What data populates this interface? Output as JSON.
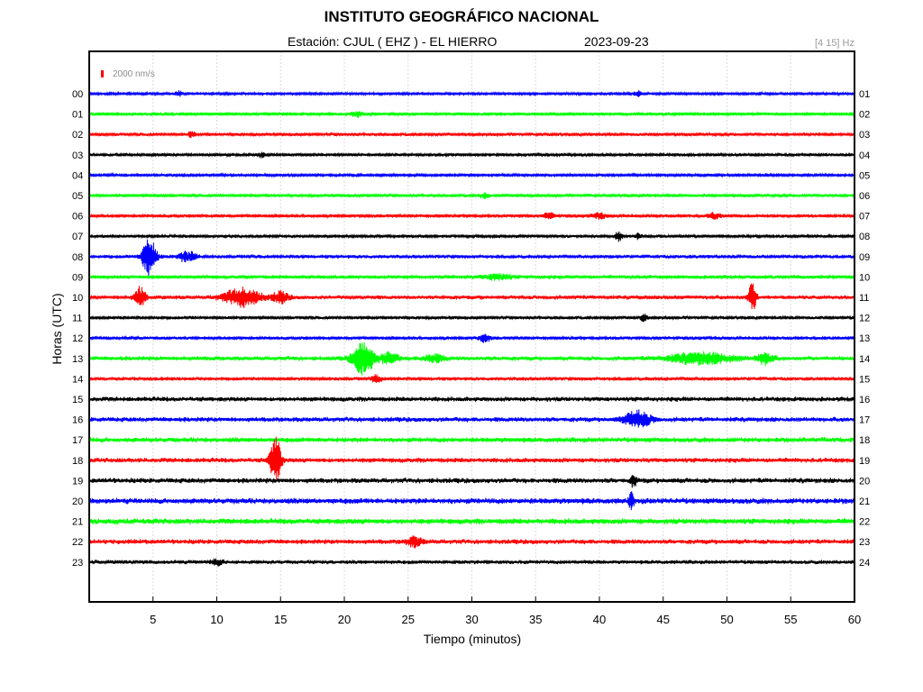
{
  "chart_data": {
    "type": "line",
    "title": "INSTITUTO GEOGRÁFICO NACIONAL",
    "station_label": "Estación:  CJUL ( EHZ ) - EL HIERRO",
    "date": "2023-09-23",
    "filter_label": "[4 15] Hz",
    "scale_label": "2000 nm/s",
    "xlabel": "Tiempo (minutos)",
    "ylabel": "Horas (UTC)",
    "xlim": [
      0,
      60
    ],
    "x_ticks": [
      5,
      10,
      15,
      20,
      25,
      30,
      35,
      40,
      45,
      50,
      55,
      60
    ],
    "grid": true,
    "colors": {
      "blue": "#0000ff",
      "green": "#00ff00",
      "red": "#ff0000",
      "black": "#000000",
      "scale": "#ff0000"
    },
    "series": [
      {
        "left_label": "00",
        "right_label": "01",
        "color": "blue",
        "noise": 1.5,
        "events": [
          {
            "t": 7.0,
            "amp": 3,
            "width": 0.3
          },
          {
            "t": 43.0,
            "amp": 3,
            "width": 0.3
          }
        ]
      },
      {
        "left_label": "01",
        "right_label": "02",
        "color": "green",
        "noise": 2.0,
        "events": [
          {
            "t": 21.0,
            "amp": 3,
            "width": 0.4
          }
        ]
      },
      {
        "left_label": "02",
        "right_label": "03",
        "color": "red",
        "noise": 2.0,
        "events": [
          {
            "t": 8.0,
            "amp": 3,
            "width": 0.3
          }
        ]
      },
      {
        "left_label": "03",
        "right_label": "04",
        "color": "black",
        "noise": 1.8,
        "events": [
          {
            "t": 13.5,
            "amp": 3,
            "width": 0.3
          }
        ]
      },
      {
        "left_label": "04",
        "right_label": "05",
        "color": "blue",
        "noise": 1.6,
        "events": []
      },
      {
        "left_label": "05",
        "right_label": "06",
        "color": "green",
        "noise": 2.0,
        "events": [
          {
            "t": 31.0,
            "amp": 3,
            "width": 0.4
          }
        ]
      },
      {
        "left_label": "06",
        "right_label": "07",
        "color": "red",
        "noise": 2.0,
        "events": [
          {
            "t": 36.0,
            "amp": 3,
            "width": 0.5
          },
          {
            "t": 40.0,
            "amp": 3,
            "width": 0.5
          },
          {
            "t": 49.0,
            "amp": 3,
            "width": 0.5
          }
        ]
      },
      {
        "left_label": "07",
        "right_label": "08",
        "color": "black",
        "noise": 1.8,
        "events": [
          {
            "t": 41.5,
            "amp": 5,
            "width": 0.3
          },
          {
            "t": 43.0,
            "amp": 3,
            "width": 0.3
          }
        ]
      },
      {
        "left_label": "08",
        "right_label": "09",
        "color": "blue",
        "noise": 2.2,
        "events": [
          {
            "t": 4.7,
            "amp": 24,
            "width": 0.5
          },
          {
            "t": 7.5,
            "amp": 5,
            "width": 0.5
          },
          {
            "t": 8.2,
            "amp": 4,
            "width": 0.3
          }
        ]
      },
      {
        "left_label": "09",
        "right_label": "10",
        "color": "green",
        "noise": 2.5,
        "events": [
          {
            "t": 32.0,
            "amp": 3,
            "width": 1.0
          }
        ]
      },
      {
        "left_label": "10",
        "right_label": "11",
        "color": "red",
        "noise": 2.5,
        "events": [
          {
            "t": 4.0,
            "amp": 11,
            "width": 0.4
          },
          {
            "t": 12.0,
            "amp": 10,
            "width": 1.4
          },
          {
            "t": 15.0,
            "amp": 6,
            "width": 0.6
          },
          {
            "t": 52.0,
            "amp": 16,
            "width": 0.3
          }
        ]
      },
      {
        "left_label": "11",
        "right_label": "12",
        "color": "black",
        "noise": 2.0,
        "events": [
          {
            "t": 43.5,
            "amp": 4,
            "width": 0.3
          }
        ]
      },
      {
        "left_label": "12",
        "right_label": "13",
        "color": "blue",
        "noise": 2.0,
        "events": [
          {
            "t": 31.0,
            "amp": 5,
            "width": 0.4
          }
        ]
      },
      {
        "left_label": "13",
        "right_label": "14",
        "color": "green",
        "noise": 2.8,
        "events": [
          {
            "t": 21.5,
            "amp": 18,
            "width": 0.8
          },
          {
            "t": 23.5,
            "amp": 6,
            "width": 0.7
          },
          {
            "t": 27.0,
            "amp": 4,
            "width": 0.8
          },
          {
            "t": 48.0,
            "amp": 6,
            "width": 2.5
          },
          {
            "t": 53.0,
            "amp": 6,
            "width": 0.6
          }
        ]
      },
      {
        "left_label": "14",
        "right_label": "15",
        "color": "red",
        "noise": 2.2,
        "events": [
          {
            "t": 22.5,
            "amp": 4,
            "width": 0.4
          }
        ]
      },
      {
        "left_label": "15",
        "right_label": "16",
        "color": "black",
        "noise": 3.0,
        "events": []
      },
      {
        "left_label": "16",
        "right_label": "17",
        "color": "blue",
        "noise": 3.0,
        "events": [
          {
            "t": 43.0,
            "amp": 9,
            "width": 1.0
          }
        ]
      },
      {
        "left_label": "17",
        "right_label": "18",
        "color": "green",
        "noise": 3.2,
        "events": []
      },
      {
        "left_label": "18",
        "right_label": "19",
        "color": "red",
        "noise": 3.0,
        "events": [
          {
            "t": 14.6,
            "amp": 28,
            "width": 0.4
          }
        ]
      },
      {
        "left_label": "19",
        "right_label": "20",
        "color": "black",
        "noise": 3.2,
        "events": [
          {
            "t": 42.7,
            "amp": 8,
            "width": 0.2
          }
        ]
      },
      {
        "left_label": "20",
        "right_label": "21",
        "color": "blue",
        "noise": 3.6,
        "events": [
          {
            "t": 42.5,
            "amp": 8,
            "width": 0.2
          }
        ]
      },
      {
        "left_label": "21",
        "right_label": "22",
        "color": "green",
        "noise": 3.6,
        "events": []
      },
      {
        "left_label": "22",
        "right_label": "23",
        "color": "red",
        "noise": 3.0,
        "events": [
          {
            "t": 25.5,
            "amp": 5,
            "width": 0.6
          }
        ]
      },
      {
        "left_label": "23",
        "right_label": "24",
        "color": "black",
        "noise": 2.5,
        "events": [
          {
            "t": 10.0,
            "amp": 3,
            "width": 0.5
          }
        ]
      }
    ]
  }
}
